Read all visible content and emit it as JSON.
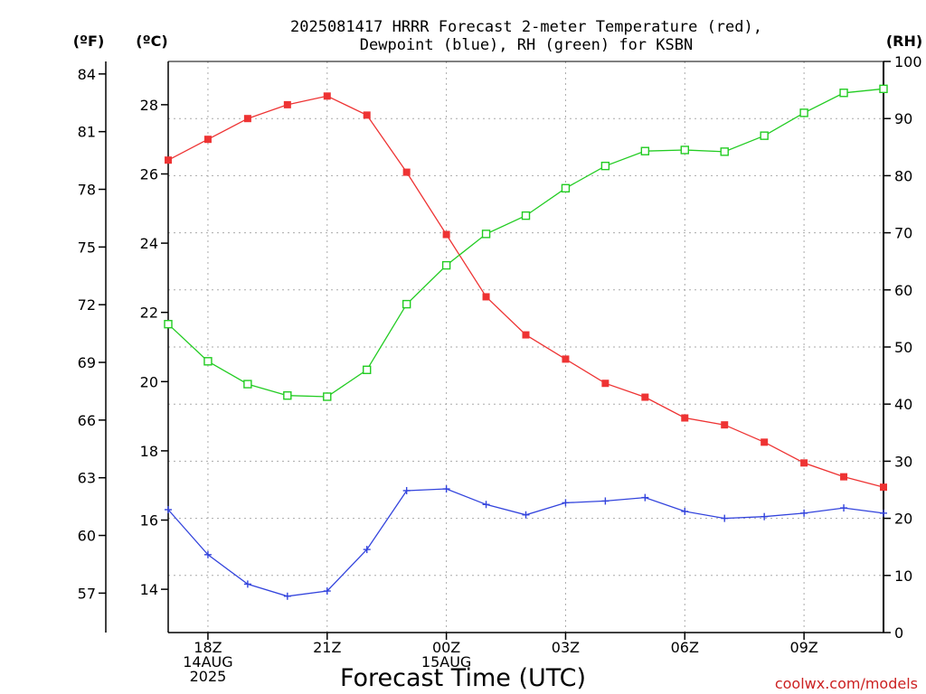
{
  "chart_data": {
    "type": "line",
    "title_line1": "2025081417 HRRR Forecast 2-meter Temperature (red),",
    "title_line2": "Dewpoint (blue), RH (green) for KSBN",
    "xlabel": "Forecast Time (UTC)",
    "credit": "coolwx.com/models",
    "y_left_f_label": "(ºF)",
    "y_left_c_label": "(ºC)",
    "y_right_label": "(RH)",
    "x_hour_range": [
      17,
      35
    ],
    "x_ticks": [
      {
        "hour": 18,
        "lines": [
          "18Z",
          "14AUG",
          "2025"
        ]
      },
      {
        "hour": 21,
        "lines": [
          "21Z"
        ]
      },
      {
        "hour": 24,
        "lines": [
          "00Z",
          "15AUG"
        ]
      },
      {
        "hour": 27,
        "lines": [
          "03Z"
        ]
      },
      {
        "hour": 30,
        "lines": [
          "06Z"
        ]
      },
      {
        "hour": 33,
        "lines": [
          "09Z"
        ]
      }
    ],
    "ylim_c": [
      12.75,
      29.25
    ],
    "ylim_rh": [
      0,
      100
    ],
    "ticks_c": [
      14,
      16,
      18,
      20,
      22,
      24,
      26,
      28
    ],
    "ticks_f": [
      57,
      60,
      63,
      66,
      69,
      72,
      75,
      78,
      81,
      84
    ],
    "ticks_rh": [
      0,
      10,
      20,
      30,
      40,
      50,
      60,
      70,
      80,
      90,
      100
    ],
    "grid": true,
    "series": [
      {
        "name": "Temperature",
        "axis": "C",
        "color": "#ee3333",
        "marker": "filled-square",
        "x_hours": [
          17,
          18,
          19,
          20,
          21,
          22,
          23,
          24,
          25,
          26,
          27,
          28,
          29,
          30,
          31,
          32,
          33,
          34,
          35
        ],
        "values": [
          26.4,
          27.0,
          27.6,
          28.0,
          28.25,
          27.7,
          26.05,
          24.25,
          22.45,
          21.35,
          20.65,
          19.95,
          19.55,
          18.95,
          18.75,
          18.25,
          17.65,
          17.25,
          16.95
        ]
      },
      {
        "name": "Dewpoint",
        "axis": "C",
        "color": "#3344dd",
        "marker": "plus",
        "x_hours": [
          17,
          18,
          19,
          20,
          21,
          22,
          23,
          24,
          25,
          26,
          27,
          28,
          29,
          30,
          31,
          32,
          33,
          34,
          35
        ],
        "values": [
          16.3,
          15.0,
          14.15,
          13.8,
          13.95,
          15.15,
          16.85,
          16.9,
          16.45,
          16.15,
          16.5,
          16.55,
          16.65,
          16.25,
          16.05,
          16.1,
          16.2,
          16.35,
          16.2
        ]
      },
      {
        "name": "RH",
        "axis": "RH",
        "color": "#22cc22",
        "marker": "open-square",
        "x_hours": [
          17,
          18,
          19,
          20,
          21,
          22,
          23,
          24,
          25,
          26,
          27,
          28,
          29,
          30,
          31,
          32,
          33,
          34,
          35
        ],
        "values": [
          54,
          47.5,
          43.5,
          41.5,
          41.3,
          46,
          57.5,
          64.3,
          69.8,
          73,
          77.8,
          81.7,
          84.3,
          84.5,
          84.2,
          87,
          91,
          94.5,
          95.2
        ]
      }
    ]
  }
}
